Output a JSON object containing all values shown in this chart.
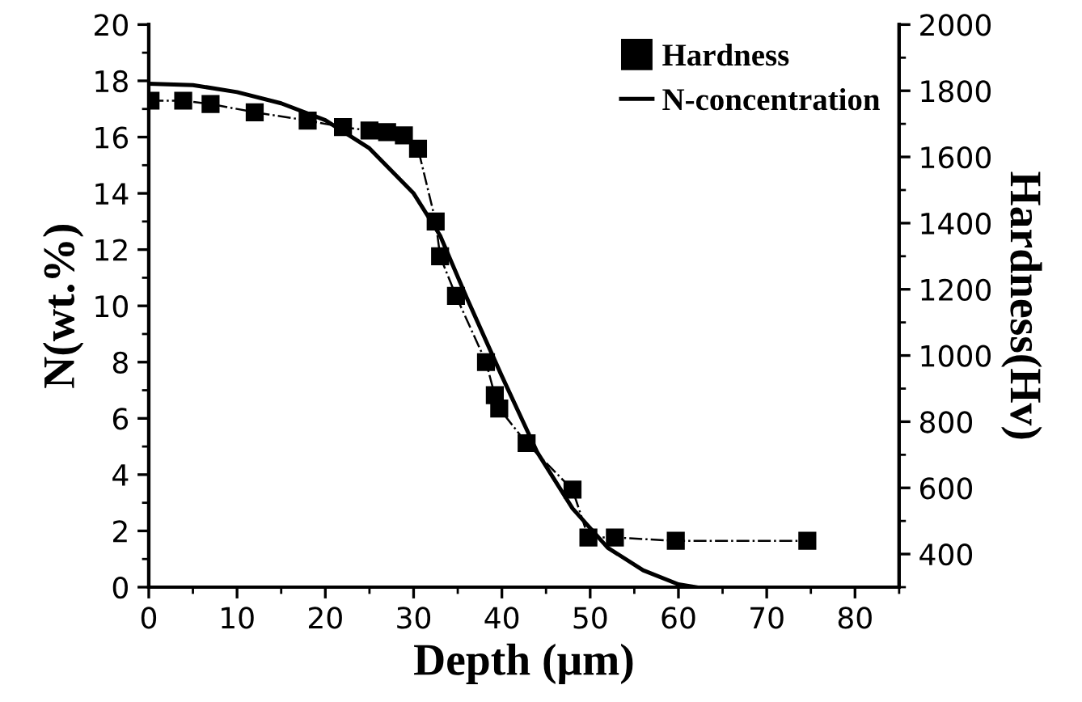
{
  "chart_data": {
    "type": "line",
    "xlabel": "Depth (μm)",
    "ylabel": "N(wt.%)",
    "y2label": "Hardness(Hv)",
    "xlim": [
      0,
      85
    ],
    "xticks": [
      0,
      10,
      20,
      30,
      40,
      50,
      60,
      70,
      80
    ],
    "ylim": [
      0,
      20
    ],
    "yticks": [
      0,
      2,
      4,
      6,
      8,
      10,
      12,
      14,
      16,
      18,
      20
    ],
    "y2lim": [
      300,
      2000
    ],
    "y2ticks": [
      400,
      600,
      800,
      1000,
      1200,
      1400,
      1600,
      1800,
      2000
    ],
    "legend": "top right",
    "grid": false,
    "series": [
      {
        "name": "Hardness",
        "axis": "y2",
        "color": "#000000",
        "marker": "square",
        "line_style": "dashdot",
        "x": [
          0.2,
          3.9,
          7,
          12,
          18,
          22,
          25,
          27,
          28.9,
          30.5,
          32.5,
          33,
          34.8,
          38.2,
          39.2,
          39.7,
          42.8,
          48,
          49.8,
          52.8,
          59.7,
          74.6
        ],
        "values": [
          1770,
          1770,
          1760,
          1735,
          1710,
          1690,
          1680,
          1675,
          1665,
          1625,
          1405,
          1300,
          1180,
          980,
          880,
          840,
          735,
          595,
          450,
          450,
          440,
          440
        ]
      },
      {
        "name": "N-concentration",
        "color": "#000000",
        "marker": "none",
        "line_style": "solid",
        "x": [
          0,
          5,
          10,
          15,
          20,
          25,
          30,
          33,
          36,
          40,
          44,
          48,
          52,
          56,
          60,
          62
        ],
        "values": [
          17.9,
          17.85,
          17.6,
          17.2,
          16.6,
          15.6,
          14.0,
          12.5,
          10.3,
          7.5,
          4.8,
          2.8,
          1.4,
          0.6,
          0.1,
          0
        ]
      }
    ]
  }
}
